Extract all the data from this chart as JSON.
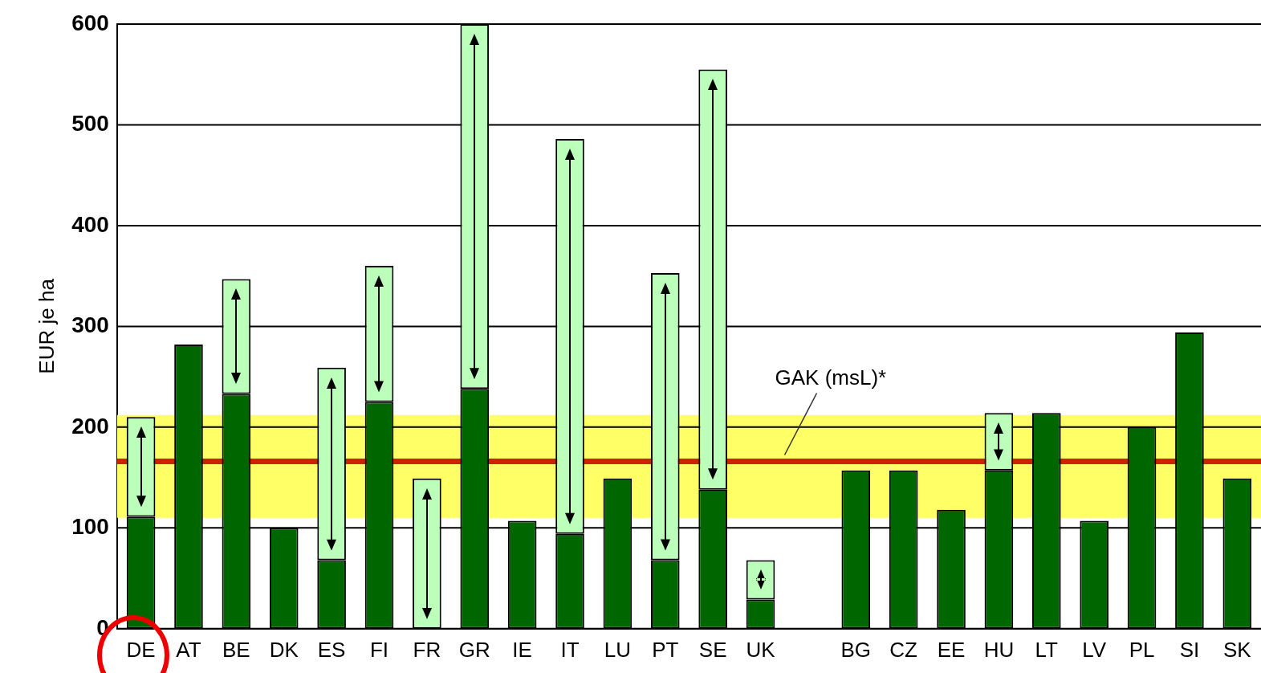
{
  "chart_data": {
    "type": "bar",
    "stacked": true,
    "ylabel": "EUR je ha",
    "categories": [
      "DE",
      "AT",
      "BE",
      "DK",
      "ES",
      "FI",
      "FR",
      "GR",
      "IE",
      "IT",
      "LU",
      "PT",
      "SE",
      "UK",
      null,
      "BG",
      "CZ",
      "EE",
      "HU",
      "LT",
      "LV",
      "PL",
      "SI",
      "SK"
    ],
    "series": [
      {
        "color": "#006600",
        "values": [
          111,
          282,
          233,
          100,
          68,
          225,
          0,
          238,
          107,
          94,
          149,
          68,
          138,
          29,
          null,
          157,
          157,
          118,
          157,
          214,
          107,
          200,
          294,
          149
        ]
      },
      {
        "color": "#bbffbb",
        "values": [
          99,
          null,
          114,
          null,
          191,
          135,
          149,
          362,
          null,
          392,
          null,
          285,
          417,
          39,
          null,
          null,
          null,
          null,
          57,
          null,
          null,
          null,
          null,
          null
        ]
      }
    ],
    "ylim": [
      0,
      600
    ],
    "yticks": [
      0,
      100,
      200,
      300,
      400,
      500,
      600
    ],
    "grid": "y",
    "legend": false,
    "bands": [
      {
        "axis": "y",
        "from": 110,
        "to": 212,
        "color": "#ffff66"
      }
    ],
    "ref_lines": [
      {
        "axis": "y",
        "value": 166,
        "label": "GAK (msL)*",
        "color": "#cc2200"
      }
    ]
  }
}
